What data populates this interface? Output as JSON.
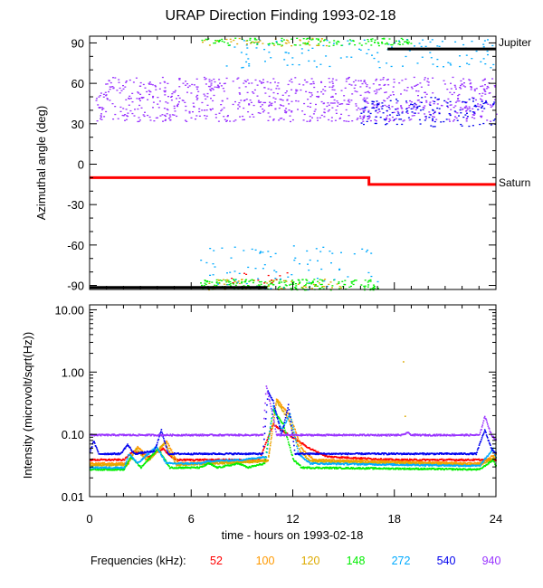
{
  "chart_data": [
    {
      "type": "scatter",
      "title": "URAP Direction Finding  1993-02-18",
      "xlabel": "time - hours on 1993-02-18",
      "ylabel": "Azimuthal angle (deg)",
      "xlim": [
        0,
        24
      ],
      "ylim": [
        -93,
        95
      ],
      "xticks": [
        0,
        6,
        12,
        18,
        24
      ],
      "xtick_labels": [
        "0",
        "6",
        "12",
        "18",
        "24"
      ],
      "yticks": [
        90,
        60,
        30,
        0,
        -30,
        -60,
        -90
      ],
      "ytick_labels": [
        "90",
        "60",
        "30",
        "0",
        "-30",
        "-60",
        "-90"
      ],
      "reference_lines": [
        {
          "name": "Jupiter",
          "color": "#000000",
          "points": [
            [
              0,
              -91.5
            ],
            [
              10.5,
              -91.5
            ],
            [
              17.6,
              85.5
            ],
            [
              24,
              85.5
            ]
          ],
          "segments": [
            [
              0,
              10.5,
              -91.5
            ],
            [
              17.6,
              24,
              85.5
            ]
          ]
        },
        {
          "name": "Saturn",
          "color": "#ff0000",
          "points": [
            [
              0,
              -10
            ],
            [
              16.5,
              -10
            ],
            [
              16.5,
              -15
            ],
            [
              24,
              -15
            ]
          ]
        }
      ],
      "scatter_regions": [
        {
          "color_key": "940",
          "x": [
            0.3,
            24
          ],
          "y": [
            32,
            65
          ],
          "density": 900
        },
        {
          "color_key": "540",
          "x": [
            16,
            24
          ],
          "y": [
            28,
            50
          ],
          "density": 150
        },
        {
          "color_key": "272",
          "x": [
            8,
            24
          ],
          "y": [
            72,
            93
          ],
          "density": 120
        },
        {
          "color_key": "148",
          "x": [
            6.5,
            19
          ],
          "y": [
            88,
            94
          ],
          "density": 120
        },
        {
          "color_key": "120",
          "x": [
            6.5,
            14
          ],
          "y": [
            88,
            94
          ],
          "density": 40
        },
        {
          "color_key": "148",
          "x": [
            6.5,
            17
          ],
          "y": [
            -93,
            -85
          ],
          "density": 200
        },
        {
          "color_key": "120",
          "x": [
            6.5,
            15
          ],
          "y": [
            -93,
            -85
          ],
          "density": 60
        },
        {
          "color_key": "272",
          "x": [
            6.5,
            17
          ],
          "y": [
            -93,
            -60
          ],
          "density": 80
        },
        {
          "color_key": "52",
          "x": [
            8,
            12
          ],
          "y": [
            -88,
            -80
          ],
          "density": 12
        }
      ]
    },
    {
      "type": "line",
      "xlabel": "time - hours on 1993-02-18",
      "ylabel": "Intensity (microvolt/sqrt(Hz))",
      "yscale": "log",
      "xlim": [
        0,
        24
      ],
      "ylim": [
        0.01,
        12
      ],
      "xticks": [
        0,
        6,
        12,
        18,
        24
      ],
      "xtick_labels": [
        "0",
        "6",
        "12",
        "18",
        "24"
      ],
      "yticks": [
        10.0,
        1.0,
        0.1,
        0.01
      ],
      "ytick_labels": [
        "10.00",
        "1.00",
        "0.10",
        "0.01"
      ],
      "series": [
        {
          "name": "52",
          "color": "#ff0000",
          "points": [
            [
              0,
              0.04
            ],
            [
              2,
              0.04
            ],
            [
              2.5,
              0.055
            ],
            [
              3.5,
              0.045
            ],
            [
              4.3,
              0.06
            ],
            [
              5,
              0.04
            ],
            [
              10,
              0.04
            ],
            [
              10.8,
              0.15
            ],
            [
              11.5,
              0.11
            ],
            [
              13,
              0.06
            ],
            [
              14,
              0.045
            ],
            [
              18,
              0.04
            ],
            [
              24,
              0.04
            ]
          ]
        },
        {
          "name": "100",
          "color": "#ff9900",
          "points": [
            [
              0,
              0.035
            ],
            [
              2.2,
              0.035
            ],
            [
              2.8,
              0.065
            ],
            [
              3.5,
              0.04
            ],
            [
              4.5,
              0.08
            ],
            [
              5.2,
              0.035
            ],
            [
              10.5,
              0.04
            ],
            [
              11,
              0.38
            ],
            [
              11.8,
              0.2
            ],
            [
              12.5,
              0.06
            ],
            [
              13.2,
              0.04
            ],
            [
              23,
              0.035
            ],
            [
              24,
              0.05
            ]
          ]
        },
        {
          "name": "120",
          "color": "#ddaa00",
          "points": [
            [
              0,
              0.033
            ],
            [
              2.2,
              0.033
            ],
            [
              2.7,
              0.06
            ],
            [
              3.4,
              0.038
            ],
            [
              4.4,
              0.075
            ],
            [
              5.1,
              0.033
            ],
            [
              10.5,
              0.038
            ],
            [
              11,
              0.35
            ],
            [
              11.7,
              0.18
            ],
            [
              12.4,
              0.055
            ],
            [
              13,
              0.038
            ],
            [
              23,
              0.033
            ],
            [
              24,
              0.045
            ]
          ]
        },
        {
          "name": "148",
          "color": "#00ee00",
          "points": [
            [
              0,
              0.028
            ],
            [
              2,
              0.028
            ],
            [
              2.4,
              0.045
            ],
            [
              3,
              0.03
            ],
            [
              4,
              0.06
            ],
            [
              4.7,
              0.03
            ],
            [
              6.5,
              0.03
            ],
            [
              7,
              0.035
            ],
            [
              7.5,
              0.03
            ],
            [
              8.8,
              0.035
            ],
            [
              9.3,
              0.03
            ],
            [
              10.3,
              0.035
            ],
            [
              10.8,
              0.25
            ],
            [
              11.4,
              0.15
            ],
            [
              12,
              0.04
            ],
            [
              12.5,
              0.03
            ],
            [
              23,
              0.028
            ],
            [
              23.8,
              0.04
            ],
            [
              24,
              0.03
            ]
          ]
        },
        {
          "name": "272",
          "color": "#00aaff",
          "points": [
            [
              0,
              0.03
            ],
            [
              2,
              0.03
            ],
            [
              2.3,
              0.05
            ],
            [
              2.8,
              0.035
            ],
            [
              3.9,
              0.065
            ],
            [
              4.5,
              0.035
            ],
            [
              6.5,
              0.035
            ],
            [
              7,
              0.038
            ],
            [
              9,
              0.04
            ],
            [
              10.4,
              0.045
            ],
            [
              10.8,
              0.3
            ],
            [
              11.3,
              0.12
            ],
            [
              11.8,
              0.22
            ],
            [
              12.3,
              0.05
            ],
            [
              13,
              0.035
            ],
            [
              23,
              0.032
            ],
            [
              23.8,
              0.06
            ],
            [
              24,
              0.04
            ]
          ]
        },
        {
          "name": "540",
          "color": "#0000ee",
          "points": [
            [
              0,
              0.055
            ],
            [
              0.2,
              0.08
            ],
            [
              0.5,
              0.05
            ],
            [
              1.8,
              0.05
            ],
            [
              2.2,
              0.07
            ],
            [
              2.6,
              0.05
            ],
            [
              3.8,
              0.055
            ],
            [
              4.2,
              0.12
            ],
            [
              4.6,
              0.05
            ],
            [
              10.2,
              0.05
            ],
            [
              10.5,
              0.5
            ],
            [
              10.8,
              0.35
            ],
            [
              11.3,
              0.1
            ],
            [
              11.7,
              0.3
            ],
            [
              12.1,
              0.05
            ],
            [
              22.8,
              0.05
            ],
            [
              23.3,
              0.12
            ],
            [
              23.7,
              0.06
            ],
            [
              24,
              0.05
            ]
          ]
        },
        {
          "name": "940",
          "color": "#9933ff",
          "points": [
            [
              0,
              0.1
            ],
            [
              10.2,
              0.1
            ],
            [
              10.4,
              0.6
            ],
            [
              10.8,
              0.2
            ],
            [
              11,
              0.1
            ],
            [
              18.5,
              0.1
            ],
            [
              18.7,
              0.11
            ],
            [
              19,
              0.1
            ],
            [
              23,
              0.1
            ],
            [
              23.3,
              0.2
            ],
            [
              23.7,
              0.1
            ],
            [
              24,
              0.08
            ]
          ]
        }
      ]
    }
  ],
  "legend": {
    "label": "Frequencies (kHz):",
    "items": [
      {
        "label": "52",
        "color": "#ff0000"
      },
      {
        "label": "100",
        "color": "#ff9900"
      },
      {
        "label": "120",
        "color": "#ddaa00"
      },
      {
        "label": "148",
        "color": "#00ee00"
      },
      {
        "label": "272",
        "color": "#00aaff"
      },
      {
        "label": "540",
        "color": "#0000ee"
      },
      {
        "label": "940",
        "color": "#9933ff"
      }
    ]
  }
}
